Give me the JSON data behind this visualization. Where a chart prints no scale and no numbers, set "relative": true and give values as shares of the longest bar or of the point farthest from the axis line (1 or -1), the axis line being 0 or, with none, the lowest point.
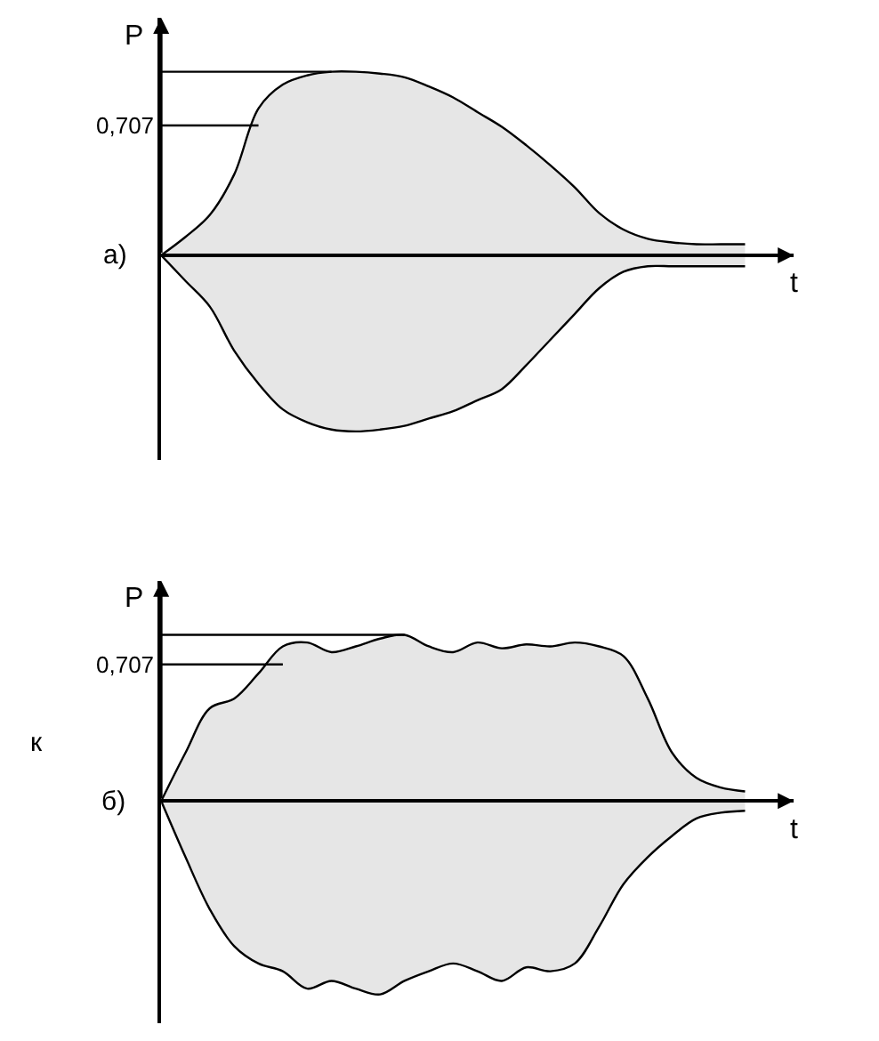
{
  "chart_data": [
    {
      "type": "area",
      "relative": true,
      "xlabel": "t",
      "ylabel": "P",
      "annotations": [
        "а)"
      ],
      "categories": [
        null,
        null,
        null,
        null,
        null,
        null,
        null,
        null,
        null,
        null,
        null,
        null,
        null,
        null,
        null,
        null,
        null,
        null,
        null,
        null,
        null,
        null,
        null,
        null,
        null
      ],
      "series": [
        {
          "color": "#e6e6e6",
          "values": [
            0,
            0.1,
            0.22,
            0.44,
            0.8,
            0.93,
            0.98,
            1,
            1,
            0.99,
            0.97,
            0.92,
            0.86,
            0.78,
            0.7,
            0.6,
            0.49,
            0.37,
            0.23,
            0.14,
            0.09,
            0.07,
            0.06,
            0.06,
            0.06
          ]
        },
        {
          "color": "#e6e6e6",
          "values": [
            0,
            -0.14,
            -0.28,
            -0.52,
            -0.7,
            -0.84,
            -0.91,
            -0.95,
            -0.96,
            -0.95,
            -0.93,
            -0.89,
            -0.85,
            -0.79,
            -0.73,
            -0.6,
            -0.46,
            -0.32,
            -0.18,
            -0.09,
            -0.06,
            -0.06,
            -0.06,
            -0.06,
            -0.06
          ]
        }
      ],
      "ref_lines": [
        {
          "axis": "y",
          "value": 1,
          "label": null
        },
        {
          "axis": "y",
          "value": 0.707,
          "label": "0,707"
        }
      ]
    },
    {
      "type": "area",
      "relative": true,
      "xlabel": "t",
      "ylabel": "P",
      "annotations": [
        "б)",
        "к"
      ],
      "categories": [
        null,
        null,
        null,
        null,
        null,
        null,
        null,
        null,
        null,
        null,
        null,
        null,
        null,
        null,
        null,
        null,
        null,
        null,
        null,
        null,
        null,
        null,
        null,
        null,
        null
      ],
      "series": [
        {
          "color": "#e6e6e6",
          "values": [
            0,
            0.25,
            0.48,
            0.53,
            0.66,
            0.8,
            0.82,
            0.77,
            0.8,
            0.84,
            0.86,
            0.8,
            0.77,
            0.82,
            0.79,
            0.81,
            0.8,
            0.82,
            0.8,
            0.75,
            0.53,
            0.25,
            0.12,
            0.07,
            0.05
          ]
        },
        {
          "color": "#e6e6e6",
          "values": [
            0,
            -0.29,
            -0.56,
            -0.75,
            -0.84,
            -0.88,
            -0.97,
            -0.93,
            -0.97,
            -1,
            -0.93,
            -0.88,
            -0.84,
            -0.88,
            -0.93,
            -0.86,
            -0.88,
            -0.84,
            -0.65,
            -0.43,
            -0.29,
            -0.18,
            -0.09,
            -0.06,
            -0.05
          ]
        }
      ],
      "ref_lines": [
        {
          "axis": "y",
          "value": 0.86,
          "label": null
        },
        {
          "axis": "y",
          "value": 0.707,
          "label": "0,707"
        }
      ]
    }
  ]
}
